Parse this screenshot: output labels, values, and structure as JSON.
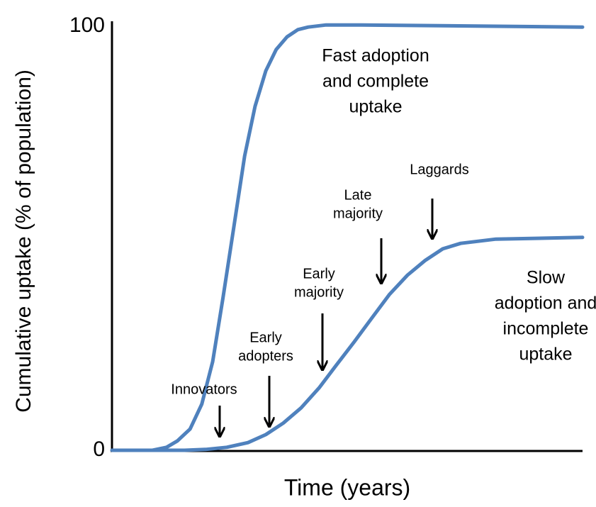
{
  "chart_data": {
    "type": "line",
    "ylabel": "Cumulative uptake (% of population)",
    "xlabel": "Time (years)",
    "xlim": [
      0,
      100
    ],
    "ylim": [
      0,
      100
    ],
    "yticks": [
      0,
      100
    ],
    "series": [
      {
        "color": "#4f81bd",
        "x": [
          1.1,
          8.6,
          11.6,
          13.9,
          16.6,
          19.1,
          21.4,
          23.6,
          25.9,
          28.2,
          30.4,
          32.7,
          34.9,
          37.2,
          39.5,
          41.7,
          45.5,
          53,
          100
        ],
        "values": [
          0,
          0,
          0.7,
          2.2,
          5,
          10.9,
          20.9,
          36,
          52.7,
          69.4,
          81.1,
          89.5,
          94.5,
          97.5,
          99.2,
          99.8,
          100.3,
          100.3,
          99.8
        ]
      },
      {
        "color": "#4f81bd",
        "x": [
          0,
          15.4,
          19.9,
          24.4,
          28.9,
          32.7,
          36.4,
          40.2,
          44,
          47.7,
          51.5,
          55.3,
          59,
          62.8,
          66.6,
          70.3,
          74.1,
          81.6,
          100
        ],
        "values": [
          0,
          0,
          0.2,
          0.7,
          1.8,
          3.7,
          6.4,
          10,
          14.7,
          20.1,
          25.6,
          31.3,
          36.8,
          41.3,
          44.8,
          47.5,
          48.8,
          49.8,
          50.2
        ]
      }
    ],
    "annotations": [
      [
        "Fast adoption",
        "and complete",
        "uptake"
      ],
      [
        "Slow",
        "adoption and",
        "incomplete",
        "uptake"
      ],
      [
        "Innovators"
      ],
      [
        "Early",
        "adopters"
      ],
      [
        "Early",
        "majority"
      ],
      [
        "Late",
        "majority"
      ],
      [
        "Laggards"
      ]
    ]
  }
}
